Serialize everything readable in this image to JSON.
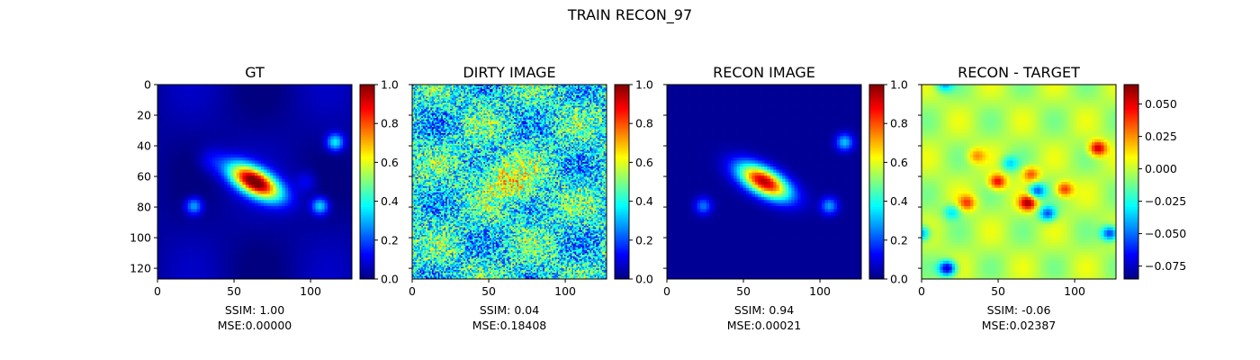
{
  "figure": {
    "title": "TRAIN RECON_97"
  },
  "chart_data": [
    {
      "type": "heatmap",
      "title": "GT",
      "xticks": [
        0,
        50,
        100
      ],
      "yticks": [
        0,
        20,
        40,
        60,
        80,
        100,
        120
      ],
      "xlim": [
        0,
        127
      ],
      "ylim": [
        127,
        0
      ],
      "show_yticklabels": true,
      "colormap": "jet",
      "colorbar": {
        "min": 0.0,
        "max": 1.0,
        "ticks": [
          "0.0",
          "0.2",
          "0.4",
          "0.6",
          "0.8",
          "1.0"
        ]
      },
      "caption": [
        "SSIM: 1.00",
        "MSE:0.00000"
      ]
    },
    {
      "type": "heatmap",
      "title": "DIRTY IMAGE",
      "xticks": [
        0,
        50,
        100
      ],
      "yticks": [
        0,
        20,
        40,
        60,
        80,
        100,
        120
      ],
      "xlim": [
        0,
        127
      ],
      "ylim": [
        127,
        0
      ],
      "show_yticklabels": false,
      "colormap": "jet",
      "colorbar": {
        "min": 0.0,
        "max": 1.0,
        "ticks": [
          "0.0",
          "0.2",
          "0.4",
          "0.6",
          "0.8",
          "1.0"
        ]
      },
      "caption": [
        "SSIM: 0.04",
        "MSE:0.18408"
      ]
    },
    {
      "type": "heatmap",
      "title": "RECON IMAGE",
      "xticks": [
        0,
        50,
        100
      ],
      "yticks": [
        0,
        20,
        40,
        60,
        80,
        100,
        120
      ],
      "xlim": [
        0,
        127
      ],
      "ylim": [
        127,
        0
      ],
      "show_yticklabels": false,
      "colormap": "jet",
      "colorbar": {
        "min": 0.0,
        "max": 1.0,
        "ticks": [
          "0.0",
          "0.2",
          "0.4",
          "0.6",
          "0.8",
          "1.0"
        ]
      },
      "caption": [
        "SSIM: 0.94",
        "MSE:0.00021"
      ]
    },
    {
      "type": "heatmap",
      "title": "RECON - TARGET",
      "xticks": [
        0,
        50,
        100
      ],
      "yticks": [
        0,
        20,
        40,
        60,
        80,
        100,
        120
      ],
      "xlim": [
        0,
        127
      ],
      "ylim": [
        127,
        0
      ],
      "show_yticklabels": false,
      "colormap": "jet",
      "colorbar": {
        "min": -0.085,
        "max": 0.065,
        "ticks": [
          "0.050",
          "0.025",
          "0.000",
          "−0.025",
          "−0.050",
          "−0.075"
        ],
        "tick_values": [
          0.05,
          0.025,
          0.0,
          -0.025,
          -0.05,
          -0.075
        ]
      },
      "caption": [
        "SSIM: -0.06",
        "MSE:0.02387"
      ]
    }
  ]
}
